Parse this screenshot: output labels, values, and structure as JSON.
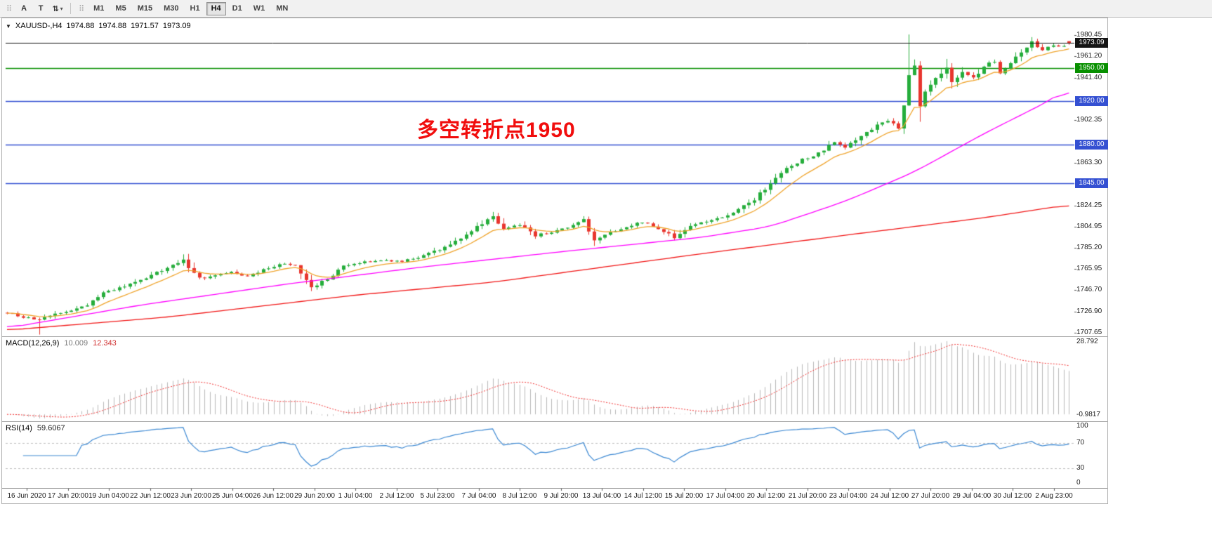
{
  "toolbar": {
    "grip": "⠿",
    "tools": [
      {
        "name": "arrow-tool",
        "glyph": "A"
      },
      {
        "name": "text-tool",
        "glyph": "T"
      },
      {
        "name": "scale-tool",
        "glyph": "⇅",
        "caret": "▾"
      }
    ],
    "timeframes": [
      "M1",
      "M5",
      "M15",
      "M30",
      "H1",
      "H4",
      "D1",
      "W1",
      "MN"
    ],
    "active_timeframe": "H4"
  },
  "quote": {
    "collapse_glyph": "▼",
    "symbol_period": "XAUUSD-,H4",
    "open": "1974.88",
    "high": "1974.88",
    "low": "1971.57",
    "close": "1973.09"
  },
  "annotation": {
    "text": "多空转折点1950",
    "color": "#f10d0d"
  },
  "price_axis": {
    "labels": [
      "1980.45",
      "1961.20",
      "1941.40",
      "1902.35",
      "1863.30",
      "1824.25",
      "1804.95",
      "1785.20",
      "1765.95",
      "1746.70",
      "1726.90",
      "1707.65"
    ],
    "current": {
      "text": "1973.09",
      "color": "#151515"
    },
    "levels": [
      {
        "text": "1950.00",
        "price": 1950.0,
        "color": "#089000"
      },
      {
        "text": "1920.00",
        "price": 1920.0,
        "color": "#3450d2"
      },
      {
        "text": "1880.00",
        "price": 1880.0,
        "color": "#3450d2"
      },
      {
        "text": "1845.00",
        "price": 1845.0,
        "color": "#3450d2"
      }
    ]
  },
  "macd": {
    "name": "MACD(12,26,9)",
    "value1": "10.009",
    "value2": "12.343",
    "axis_max": "28.792",
    "axis_min": "-0.9817",
    "histogram_color": "#b9b9b9",
    "signal_color": "#f13030"
  },
  "rsi": {
    "name": "RSI(14)",
    "value": "59.6067",
    "axis": [
      "100",
      "70",
      "30",
      "0"
    ],
    "levels": [
      70,
      30
    ],
    "line_color": "#3a87d2"
  },
  "time_axis": [
    "16 Jun 2020",
    "17 Jun 20:00",
    "19 Jun 04:00",
    "22 Jun 12:00",
    "23 Jun 20:00",
    "25 Jun 04:00",
    "26 Jun 12:00",
    "29 Jun 20:00",
    "1 Jul 04:00",
    "2 Jul 12:00",
    "5 Jul 23:00",
    "7 Jul 04:00",
    "8 Jul 12:00",
    "9 Jul 20:00",
    "13 Jul 04:00",
    "14 Jul 12:00",
    "15 Jul 20:00",
    "17 Jul 04:00",
    "20 Jul 12:00",
    "21 Jul 20:00",
    "23 Jul 04:00",
    "24 Jul 12:00",
    "27 Jul 20:00",
    "29 Jul 04:00",
    "30 Jul 12:00",
    "2 Aug 23:00"
  ],
  "chart_data": {
    "type": "candlestick",
    "symbol": "XAUUSD-",
    "timeframe": "H4",
    "bars": 200,
    "price_range": [
      1700,
      1991
    ],
    "ohlc_last": [
      1974.88,
      1974.88,
      1971.57,
      1973.09
    ],
    "candle_colors": {
      "up": "#25ad3b",
      "down": "#e8352e"
    },
    "close_waypoints": [
      [
        0,
        1726
      ],
      [
        3,
        1722
      ],
      [
        6,
        1719
      ],
      [
        9,
        1725
      ],
      [
        12,
        1728
      ],
      [
        15,
        1733
      ],
      [
        18,
        1744
      ],
      [
        22,
        1750
      ],
      [
        26,
        1758
      ],
      [
        30,
        1767
      ],
      [
        33,
        1774
      ],
      [
        36,
        1757
      ],
      [
        39,
        1761
      ],
      [
        42,
        1763
      ],
      [
        45,
        1759
      ],
      [
        48,
        1765
      ],
      [
        51,
        1771
      ],
      [
        54,
        1770
      ],
      [
        57,
        1749
      ],
      [
        60,
        1757
      ],
      [
        63,
        1768
      ],
      [
        66,
        1772
      ],
      [
        70,
        1774
      ],
      [
        74,
        1773
      ],
      [
        78,
        1778
      ],
      [
        82,
        1786
      ],
      [
        86,
        1798
      ],
      [
        89,
        1808
      ],
      [
        91,
        1814
      ],
      [
        93,
        1802
      ],
      [
        96,
        1807
      ],
      [
        99,
        1797
      ],
      [
        102,
        1800
      ],
      [
        105,
        1804
      ],
      [
        108,
        1811
      ],
      [
        110,
        1792
      ],
      [
        113,
        1799
      ],
      [
        116,
        1805
      ],
      [
        119,
        1809
      ],
      [
        122,
        1803
      ],
      [
        125,
        1795
      ],
      [
        128,
        1806
      ],
      [
        131,
        1810
      ],
      [
        134,
        1813
      ],
      [
        137,
        1820
      ],
      [
        140,
        1830
      ],
      [
        143,
        1845
      ],
      [
        146,
        1858
      ],
      [
        149,
        1866
      ],
      [
        152,
        1872
      ],
      [
        155,
        1882
      ],
      [
        157,
        1877
      ],
      [
        160,
        1888
      ],
      [
        163,
        1898
      ],
      [
        165,
        1902
      ],
      [
        167,
        1896
      ],
      [
        168,
        1915
      ],
      [
        169,
        1945
      ],
      [
        170,
        1952
      ],
      [
        171,
        1916
      ],
      [
        172,
        1928
      ],
      [
        174,
        1940
      ],
      [
        176,
        1950
      ],
      [
        177,
        1938
      ],
      [
        179,
        1947
      ],
      [
        181,
        1941
      ],
      [
        183,
        1952
      ],
      [
        185,
        1957
      ],
      [
        186,
        1946
      ],
      [
        188,
        1956
      ],
      [
        190,
        1966
      ],
      [
        192,
        1974
      ],
      [
        194,
        1967
      ],
      [
        196,
        1971
      ],
      [
        198,
        1970
      ],
      [
        199,
        1973.09
      ]
    ],
    "wick_overrides": [
      {
        "i": 6,
        "low": 1706
      },
      {
        "i": 33,
        "high": 1779.5
      },
      {
        "i": 57,
        "low": 1745.8
      },
      {
        "i": 91,
        "high": 1818.4
      },
      {
        "i": 169,
        "high": 1981
      },
      {
        "i": 171,
        "low": 1901
      },
      {
        "i": 176,
        "high": 1958.6
      },
      {
        "i": 192,
        "high": 1978.6
      }
    ],
    "moving_averages": [
      {
        "name": "fast-ma",
        "color": "#efa32a",
        "type": "ema",
        "period": 10
      },
      {
        "name": "medium-ma",
        "color": "#ff00ff",
        "type": "waypoints",
        "points": [
          [
            0,
            1712
          ],
          [
            25,
            1733
          ],
          [
            52,
            1752
          ],
          [
            78,
            1768
          ],
          [
            104,
            1782
          ],
          [
            130,
            1795
          ],
          [
            143,
            1805
          ],
          [
            157,
            1828
          ],
          [
            170,
            1855
          ],
          [
            183,
            1890
          ],
          [
            196,
            1922
          ],
          [
            199,
            1933
          ]
        ]
      },
      {
        "name": "slow-ma",
        "color": "#f11616",
        "type": "waypoints",
        "points": [
          [
            0,
            1710
          ],
          [
            30,
            1722
          ],
          [
            65,
            1742
          ],
          [
            91,
            1754
          ],
          [
            130,
            1780
          ],
          [
            157,
            1797
          ],
          [
            183,
            1813
          ],
          [
            199,
            1825
          ]
        ]
      }
    ],
    "hlines": [
      {
        "price": 1973.09,
        "color": "#151515",
        "width": 1
      },
      {
        "price": 1950.0,
        "color": "#089000",
        "width": 1.6
      },
      {
        "price": 1920.0,
        "color": "#3450d2",
        "width": 1.6
      },
      {
        "price": 1880.0,
        "color": "#3450d2",
        "width": 1.6
      },
      {
        "price": 1845.0,
        "color": "#3450d2",
        "width": 1.6
      }
    ],
    "macd_params": [
      12,
      26,
      9
    ],
    "rsi_period": 14
  }
}
